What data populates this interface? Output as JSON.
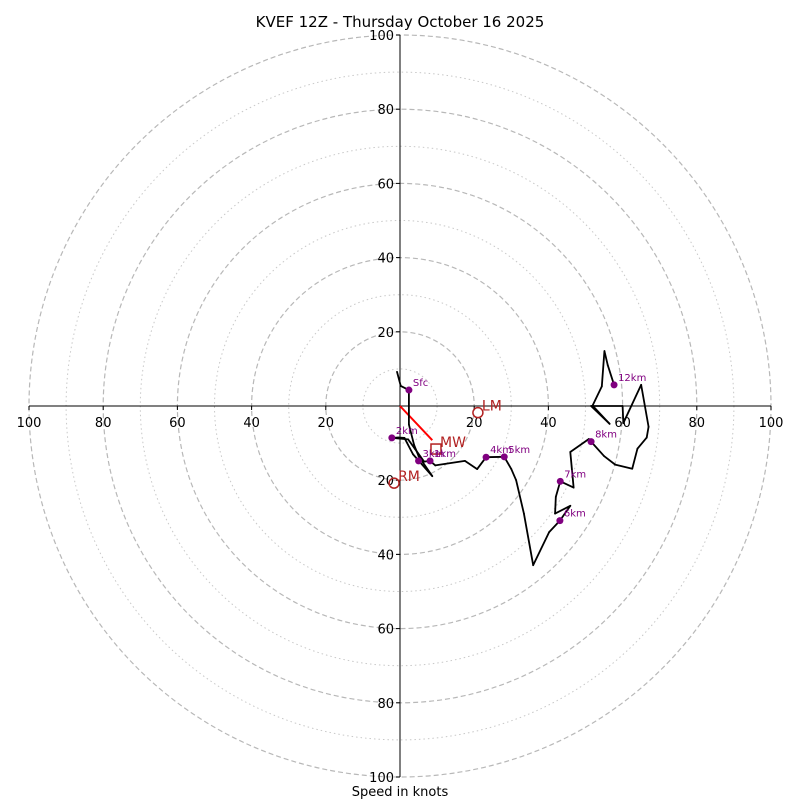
{
  "chart_data": {
    "type": "line",
    "subtype": "hodograph",
    "title": "KVEF 12Z - Thursday October 16 2025",
    "xlabel": "Speed in knots",
    "ylabel": "",
    "range": [
      -100,
      100
    ],
    "ring_major": [
      20,
      40,
      60,
      80,
      100
    ],
    "ring_minor": [
      10,
      30,
      50,
      70,
      90
    ],
    "x_tick_labels": [
      "100",
      "80",
      "60",
      "40",
      "20",
      "20",
      "40",
      "60",
      "80",
      "100"
    ],
    "x_tick_values": [
      -100,
      -80,
      -60,
      -40,
      -20,
      20,
      40,
      60,
      80,
      100
    ],
    "y_tick_labels": [
      "100",
      "80",
      "60",
      "40",
      "20",
      "20",
      "40",
      "60",
      "80",
      "100"
    ],
    "y_tick_values": [
      100,
      80,
      60,
      40,
      20,
      -20,
      -40,
      -60,
      -80,
      -100
    ],
    "grid": true,
    "trace_color": "#000000",
    "trace": [
      [
        -0.8,
        9.2
      ],
      [
        0.2,
        5.4
      ],
      [
        2.4,
        4.3
      ],
      [
        2.4,
        -5.0
      ],
      [
        3.8,
        -10.5
      ],
      [
        5.0,
        -13.5
      ],
      [
        8.7,
        -18.9
      ],
      [
        3.5,
        -13.0
      ],
      [
        1.2,
        -8.6
      ],
      [
        -0.5,
        -8.5
      ],
      [
        -2.2,
        -8.6
      ],
      [
        2.2,
        -9.0
      ],
      [
        4.0,
        -11.5
      ],
      [
        6.5,
        -15.0
      ],
      [
        8.1,
        -14.8
      ],
      [
        9.5,
        -16.0
      ],
      [
        17.5,
        -14.8
      ],
      [
        20.8,
        -17.0
      ],
      [
        23.2,
        -13.8
      ],
      [
        28.1,
        -13.7
      ],
      [
        30.0,
        -17.0
      ],
      [
        31.3,
        -20.0
      ],
      [
        33.4,
        -29.0
      ],
      [
        35.9,
        -42.9
      ],
      [
        40.2,
        -34.0
      ],
      [
        43.1,
        -30.9
      ],
      [
        45.9,
        -26.9
      ],
      [
        41.8,
        -29.0
      ],
      [
        42.0,
        -24.5
      ],
      [
        43.2,
        -20.3
      ],
      [
        46.8,
        -22.0
      ],
      [
        45.9,
        -12.4
      ],
      [
        50.9,
        -8.9
      ],
      [
        51.5,
        -9.6
      ],
      [
        55.0,
        -13.5
      ],
      [
        58.0,
        -15.8
      ],
      [
        62.6,
        -16.9
      ],
      [
        64.0,
        -11.5
      ],
      [
        66.5,
        -8.5
      ],
      [
        67.0,
        -5.6
      ],
      [
        65.0,
        5.7
      ],
      [
        60.2,
        -4.6
      ],
      [
        60.0,
        0.0
      ],
      [
        51.5,
        0.0
      ],
      [
        56.5,
        -4.8
      ],
      [
        51.9,
        0.1
      ],
      [
        54.4,
        5.3
      ],
      [
        55.1,
        14.8
      ],
      [
        56.0,
        11.0
      ],
      [
        57.7,
        5.7
      ]
    ],
    "height_markers": [
      {
        "label": "Sfc",
        "u": 2.4,
        "v": 4.3
      },
      {
        "label": "1km",
        "u": 8.1,
        "v": -14.8
      },
      {
        "label": "2km",
        "u": -2.2,
        "v": -8.6
      },
      {
        "label": "3km",
        "u": 5.0,
        "v": -14.8
      },
      {
        "label": "4km",
        "u": 23.2,
        "v": -13.8
      },
      {
        "label": "5km",
        "u": 28.1,
        "v": -13.7
      },
      {
        "label": "6km",
        "u": 43.1,
        "v": -30.9
      },
      {
        "label": "7km",
        "u": 43.2,
        "v": -20.3
      },
      {
        "label": "8km",
        "u": 51.5,
        "v": -9.6
      },
      {
        "label": "12km",
        "u": 57.7,
        "v": 5.7
      }
    ],
    "marker_color": "#800080",
    "motion": {
      "color_line": "#ff0000",
      "label_color": "#b22222",
      "mean_wind_vector": {
        "from": [
          0,
          0
        ],
        "to": [
          8.7,
          -9.2
        ]
      },
      "storm_motions": [
        {
          "label": "LM",
          "u": 21.0,
          "v": -1.8,
          "shape": "circle"
        },
        {
          "label": "RM",
          "u": -1.6,
          "v": -20.8,
          "shape": "circle"
        },
        {
          "label": "MW",
          "u": 9.7,
          "v": -11.6,
          "shape": "square"
        }
      ]
    }
  }
}
